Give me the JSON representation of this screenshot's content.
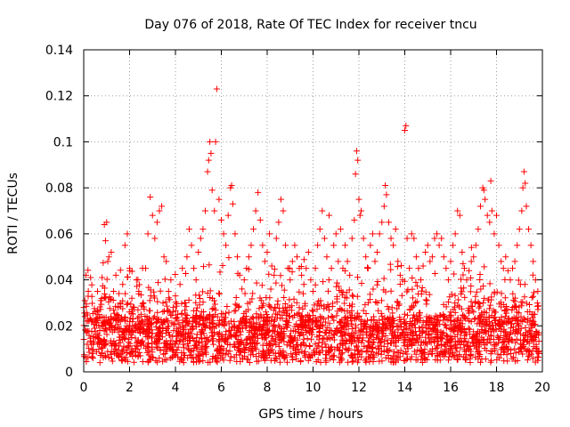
{
  "chart_data": {
    "type": "scatter",
    "title": "Day 076 of 2018, Rate Of TEC Index for receiver tncu",
    "xlabel": "GPS time / hours",
    "ylabel": "ROTI / TECUs",
    "xlim": [
      0,
      20
    ],
    "ylim": [
      0,
      0.14
    ],
    "grid": true,
    "marker": "+",
    "color": "#ff0000",
    "x_ticks": [
      0,
      2,
      4,
      6,
      8,
      10,
      12,
      14,
      16,
      18,
      20
    ],
    "x_tick_labels": [
      "0",
      "2",
      "4",
      "6",
      "8",
      "10",
      "12",
      "14",
      "16",
      "18",
      "20"
    ],
    "y_ticks": [
      0,
      0.02,
      0.04,
      0.06,
      0.08,
      0.1,
      0.12,
      0.14
    ],
    "y_tick_labels": [
      "0",
      "0.02",
      "0.04",
      "0.06",
      "0.08",
      "0.1",
      "0.12",
      "0.14"
    ],
    "series": [
      {
        "name": "ROTI",
        "sample_note": "representative sample of the dense scatter",
        "points": [
          [
            0.05,
            0.031
          ],
          [
            0.1,
            0.042
          ],
          [
            0.15,
            0.012
          ],
          [
            0.2,
            0.035
          ],
          [
            0.3,
            0.041
          ],
          [
            0.35,
            0.022
          ],
          [
            0.4,
            0.008
          ],
          [
            0.5,
            0.026
          ],
          [
            0.6,
            0.035
          ],
          [
            0.7,
            0.018
          ],
          [
            0.8,
            0.041
          ],
          [
            0.9,
            0.064
          ],
          [
            0.95,
            0.057
          ],
          [
            1.0,
            0.065
          ],
          [
            1.05,
            0.048
          ],
          [
            1.1,
            0.05
          ],
          [
            1.2,
            0.052
          ],
          [
            1.3,
            0.035
          ],
          [
            1.4,
            0.042
          ],
          [
            1.5,
            0.028
          ],
          [
            1.6,
            0.022
          ],
          [
            1.7,
            0.038
          ],
          [
            1.8,
            0.055
          ],
          [
            1.9,
            0.06
          ],
          [
            2.0,
            0.045
          ],
          [
            2.1,
            0.032
          ],
          [
            2.2,
            0.028
          ],
          [
            2.3,
            0.04
          ],
          [
            2.4,
            0.035
          ],
          [
            2.5,
            0.025
          ],
          [
            2.6,
            0.03
          ],
          [
            2.7,
            0.045
          ],
          [
            2.8,
            0.06
          ],
          [
            2.9,
            0.076
          ],
          [
            3.0,
            0.068
          ],
          [
            3.1,
            0.058
          ],
          [
            3.2,
            0.065
          ],
          [
            3.3,
            0.07
          ],
          [
            3.4,
            0.072
          ],
          [
            3.5,
            0.05
          ],
          [
            3.6,
            0.048
          ],
          [
            3.7,
            0.035
          ],
          [
            3.8,
            0.04
          ],
          [
            3.9,
            0.028
          ],
          [
            4.0,
            0.033
          ],
          [
            4.1,
            0.025
          ],
          [
            4.2,
            0.038
          ],
          [
            4.3,
            0.045
          ],
          [
            4.4,
            0.03
          ],
          [
            4.5,
            0.05
          ],
          [
            4.6,
            0.062
          ],
          [
            4.7,
            0.055
          ],
          [
            4.8,
            0.045
          ],
          [
            4.9,
            0.04
          ],
          [
            5.0,
            0.052
          ],
          [
            5.1,
            0.058
          ],
          [
            5.2,
            0.062
          ],
          [
            5.3,
            0.07
          ],
          [
            5.4,
            0.087
          ],
          [
            5.45,
            0.092
          ],
          [
            5.5,
            0.1
          ],
          [
            5.55,
            0.095
          ],
          [
            5.6,
            0.079
          ],
          [
            5.7,
            0.07
          ],
          [
            5.75,
            0.1
          ],
          [
            5.8,
            0.123
          ],
          [
            5.9,
            0.075
          ],
          [
            6.0,
            0.066
          ],
          [
            6.1,
            0.06
          ],
          [
            6.2,
            0.055
          ],
          [
            6.3,
            0.068
          ],
          [
            6.4,
            0.08
          ],
          [
            6.45,
            0.081
          ],
          [
            6.5,
            0.073
          ],
          [
            6.6,
            0.06
          ],
          [
            6.7,
            0.05
          ],
          [
            6.8,
            0.042
          ],
          [
            6.9,
            0.036
          ],
          [
            7.0,
            0.04
          ],
          [
            7.1,
            0.045
          ],
          [
            7.2,
            0.05
          ],
          [
            7.3,
            0.055
          ],
          [
            7.4,
            0.062
          ],
          [
            7.5,
            0.07
          ],
          [
            7.6,
            0.078
          ],
          [
            7.7,
            0.066
          ],
          [
            7.8,
            0.055
          ],
          [
            7.9,
            0.048
          ],
          [
            8.0,
            0.052
          ],
          [
            8.1,
            0.06
          ],
          [
            8.2,
            0.046
          ],
          [
            8.3,
            0.042
          ],
          [
            8.4,
            0.058
          ],
          [
            8.5,
            0.065
          ],
          [
            8.6,
            0.075
          ],
          [
            8.7,
            0.07
          ],
          [
            8.8,
            0.055
          ],
          [
            8.9,
            0.045
          ],
          [
            9.0,
            0.04
          ],
          [
            9.1,
            0.048
          ],
          [
            9.2,
            0.055
          ],
          [
            9.3,
            0.05
          ],
          [
            9.4,
            0.045
          ],
          [
            9.5,
            0.042
          ],
          [
            9.6,
            0.038
          ],
          [
            9.7,
            0.045
          ],
          [
            9.8,
            0.052
          ],
          [
            9.9,
            0.04
          ],
          [
            10.0,
            0.035
          ],
          [
            10.1,
            0.045
          ],
          [
            10.2,
            0.055
          ],
          [
            10.3,
            0.062
          ],
          [
            10.4,
            0.07
          ],
          [
            10.5,
            0.058
          ],
          [
            10.6,
            0.05
          ],
          [
            10.7,
            0.068
          ],
          [
            10.8,
            0.045
          ],
          [
            10.9,
            0.055
          ],
          [
            11.0,
            0.06
          ],
          [
            11.1,
            0.048
          ],
          [
            11.2,
            0.062
          ],
          [
            11.3,
            0.045
          ],
          [
            11.4,
            0.055
          ],
          [
            11.5,
            0.048
          ],
          [
            11.6,
            0.042
          ],
          [
            11.7,
            0.058
          ],
          [
            11.8,
            0.066
          ],
          [
            11.85,
            0.086
          ],
          [
            11.9,
            0.096
          ],
          [
            11.95,
            0.092
          ],
          [
            12.0,
            0.075
          ],
          [
            12.05,
            0.068
          ],
          [
            12.1,
            0.07
          ],
          [
            12.2,
            0.058
          ],
          [
            12.3,
            0.05
          ],
          [
            12.4,
            0.045
          ],
          [
            12.5,
            0.055
          ],
          [
            12.6,
            0.06
          ],
          [
            12.7,
            0.048
          ],
          [
            12.8,
            0.052
          ],
          [
            12.9,
            0.06
          ],
          [
            13.0,
            0.065
          ],
          [
            13.1,
            0.072
          ],
          [
            13.15,
            0.081
          ],
          [
            13.2,
            0.077
          ],
          [
            13.3,
            0.065
          ],
          [
            13.4,
            0.058
          ],
          [
            13.5,
            0.055
          ],
          [
            13.6,
            0.062
          ],
          [
            13.7,
            0.048
          ],
          [
            13.8,
            0.042
          ],
          [
            13.9,
            0.04
          ],
          [
            14.0,
            0.105
          ],
          [
            14.05,
            0.107
          ],
          [
            14.1,
            0.058
          ],
          [
            14.2,
            0.045
          ],
          [
            14.3,
            0.06
          ],
          [
            14.4,
            0.058
          ],
          [
            14.5,
            0.05
          ],
          [
            14.6,
            0.045
          ],
          [
            14.7,
            0.04
          ],
          [
            14.8,
            0.046
          ],
          [
            14.9,
            0.052
          ],
          [
            15.0,
            0.055
          ],
          [
            15.1,
            0.048
          ],
          [
            15.2,
            0.05
          ],
          [
            15.3,
            0.058
          ],
          [
            15.4,
            0.06
          ],
          [
            15.5,
            0.055
          ],
          [
            15.6,
            0.058
          ],
          [
            15.7,
            0.05
          ],
          [
            15.8,
            0.045
          ],
          [
            15.9,
            0.04
          ],
          [
            16.0,
            0.048
          ],
          [
            16.1,
            0.055
          ],
          [
            16.2,
            0.06
          ],
          [
            16.3,
            0.07
          ],
          [
            16.4,
            0.068
          ],
          [
            16.5,
            0.052
          ],
          [
            16.6,
            0.045
          ],
          [
            16.7,
            0.04
          ],
          [
            16.8,
            0.044
          ],
          [
            16.9,
            0.048
          ],
          [
            17.0,
            0.05
          ],
          [
            17.1,
            0.055
          ],
          [
            17.2,
            0.062
          ],
          [
            17.3,
            0.072
          ],
          [
            17.4,
            0.08
          ],
          [
            17.45,
            0.079
          ],
          [
            17.5,
            0.075
          ],
          [
            17.6,
            0.068
          ],
          [
            17.7,
            0.065
          ],
          [
            17.75,
            0.083
          ],
          [
            17.8,
            0.07
          ],
          [
            17.9,
            0.06
          ],
          [
            18.0,
            0.068
          ],
          [
            18.1,
            0.055
          ],
          [
            18.2,
            0.048
          ],
          [
            18.3,
            0.045
          ],
          [
            18.4,
            0.05
          ],
          [
            18.5,
            0.044
          ],
          [
            18.6,
            0.04
          ],
          [
            18.7,
            0.045
          ],
          [
            18.8,
            0.048
          ],
          [
            18.9,
            0.055
          ],
          [
            19.0,
            0.062
          ],
          [
            19.1,
            0.07
          ],
          [
            19.15,
            0.08
          ],
          [
            19.2,
            0.087
          ],
          [
            19.25,
            0.082
          ],
          [
            19.3,
            0.072
          ],
          [
            19.4,
            0.062
          ],
          [
            19.5,
            0.055
          ],
          [
            19.6,
            0.048
          ],
          [
            19.7,
            0.04
          ],
          [
            19.8,
            0.035
          ]
        ]
      }
    ]
  }
}
